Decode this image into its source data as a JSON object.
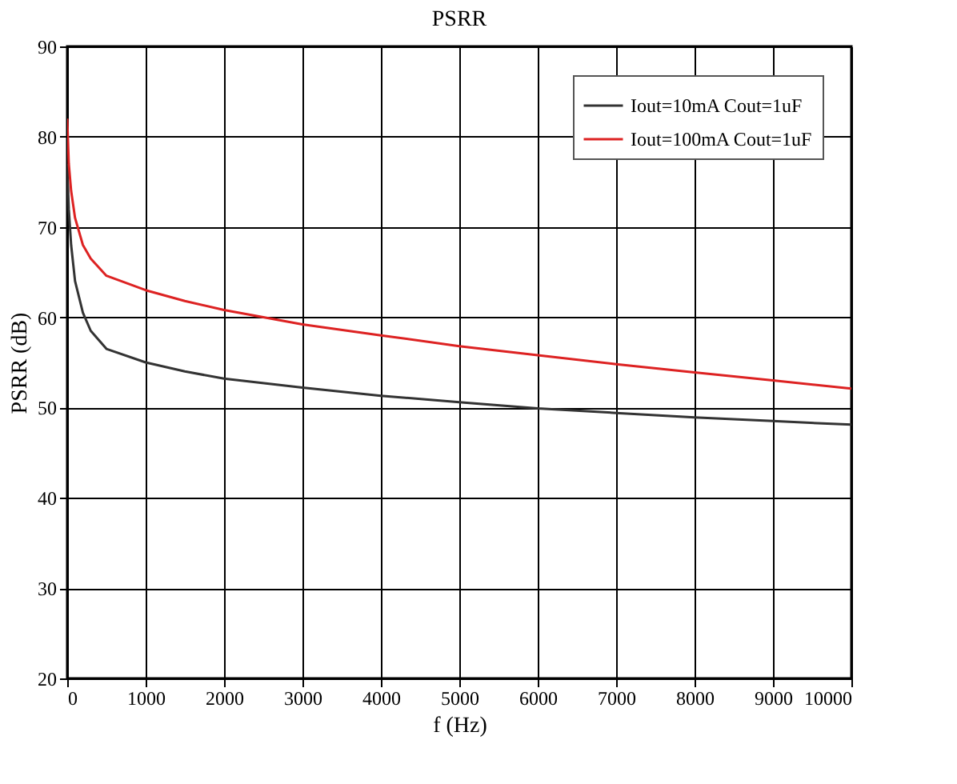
{
  "chart_data": {
    "type": "line",
    "title": "PSRR",
    "xlabel": "f (Hz)",
    "ylabel": "PSRR (dB)",
    "xlim": [
      0,
      10000
    ],
    "xticks": [
      0,
      1000,
      2000,
      3000,
      4000,
      5000,
      6000,
      7000,
      8000,
      9000,
      10000
    ],
    "ylim": [
      20,
      90
    ],
    "yticks": [
      20,
      30,
      40,
      50,
      60,
      70,
      80,
      90
    ],
    "grid": true,
    "legend": "top right",
    "line_style": "solid",
    "marker": "none",
    "series": [
      {
        "name": "Iout=10mA Cout=1uF",
        "color": "#333333",
        "x": [
          0,
          20,
          50,
          100,
          200,
          300,
          500,
          1000,
          1500,
          2000,
          3000,
          4000,
          5000,
          6000,
          7000,
          8000,
          9000,
          10000
        ],
        "values": [
          77,
          72,
          68,
          64,
          60.5,
          58.5,
          56.5,
          55,
          54,
          53.2,
          52.2,
          51.3,
          50.6,
          49.9,
          49.4,
          48.9,
          48.5,
          48.1
        ]
      },
      {
        "name": "Iout=100mA Cout=1uF",
        "color": "#dd2222",
        "x": [
          0,
          20,
          50,
          100,
          200,
          300,
          500,
          1000,
          1500,
          2000,
          3000,
          4000,
          5000,
          6000,
          7000,
          8000,
          9000,
          10000
        ],
        "values": [
          82,
          77,
          74,
          71,
          68,
          66.5,
          64.6,
          63,
          61.8,
          60.8,
          59.2,
          58,
          56.8,
          55.8,
          54.8,
          53.9,
          53,
          52.1
        ]
      }
    ]
  }
}
